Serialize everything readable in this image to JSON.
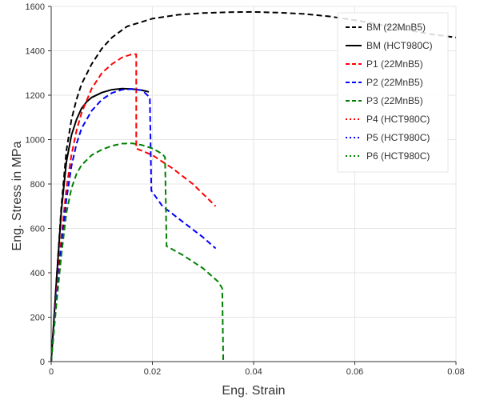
{
  "chart_data": {
    "type": "line",
    "title": "",
    "xlabel": "Eng. Strain",
    "ylabel": "Eng. Stress in MPa",
    "xlim": [
      0,
      0.08
    ],
    "ylim": [
      0,
      1600
    ],
    "xticks": [
      0,
      0.02,
      0.04,
      0.06,
      0.08
    ],
    "xtick_labels": [
      "0",
      "0.02",
      "0.04",
      "0.06",
      "0.08"
    ],
    "yticks": [
      0,
      200,
      400,
      600,
      800,
      1000,
      1200,
      1400,
      1600
    ],
    "ytick_labels": [
      "0",
      "200",
      "400",
      "600",
      "800",
      "1000",
      "1200",
      "1400",
      "1600"
    ],
    "grid": true,
    "legend_position": "top-right",
    "series": [
      {
        "name": "BM  (22MnB5)",
        "color": "#000000",
        "style": "dashed",
        "points": [
          [
            0,
            0
          ],
          [
            0.001,
            350
          ],
          [
            0.002,
            700
          ],
          [
            0.003,
            950
          ],
          [
            0.004,
            1090
          ],
          [
            0.005,
            1180
          ],
          [
            0.006,
            1250
          ],
          [
            0.008,
            1340
          ],
          [
            0.01,
            1410
          ],
          [
            0.012,
            1460
          ],
          [
            0.015,
            1510
          ],
          [
            0.02,
            1545
          ],
          [
            0.025,
            1562
          ],
          [
            0.03,
            1570
          ],
          [
            0.035,
            1574
          ],
          [
            0.04,
            1575
          ],
          [
            0.045,
            1572
          ],
          [
            0.05,
            1566
          ],
          [
            0.055,
            1555
          ],
          [
            0.06,
            1538
          ],
          [
            0.065,
            1518
          ],
          [
            0.07,
            1495
          ],
          [
            0.075,
            1475
          ],
          [
            0.08,
            1460
          ]
        ]
      },
      {
        "name": "BM    (HCT980C)",
        "color": "#000000",
        "style": "solid",
        "points": [
          [
            0,
            0
          ],
          [
            0.001,
            350
          ],
          [
            0.002,
            680
          ],
          [
            0.003,
            900
          ],
          [
            0.004,
            1020
          ],
          [
            0.005,
            1090
          ],
          [
            0.006,
            1140
          ],
          [
            0.007,
            1170
          ],
          [
            0.008,
            1190
          ],
          [
            0.01,
            1212
          ],
          [
            0.012,
            1225
          ],
          [
            0.014,
            1230
          ],
          [
            0.016,
            1228
          ],
          [
            0.018,
            1222
          ],
          [
            0.0193,
            1215
          ]
        ]
      },
      {
        "name": "P1 (22MnB5)",
        "color": "#ff0000",
        "style": "dashed",
        "points": [
          [
            0,
            0
          ],
          [
            0.001,
            300
          ],
          [
            0.002,
            560
          ],
          [
            0.003,
            780
          ],
          [
            0.004,
            930
          ],
          [
            0.005,
            1040
          ],
          [
            0.006,
            1120
          ],
          [
            0.008,
            1230
          ],
          [
            0.01,
            1300
          ],
          [
            0.012,
            1340
          ],
          [
            0.014,
            1370
          ],
          [
            0.016,
            1385
          ],
          [
            0.0168,
            1385
          ],
          [
            0.0168,
            960
          ],
          [
            0.02,
            930
          ],
          [
            0.024,
            870
          ],
          [
            0.028,
            800
          ],
          [
            0.0325,
            700
          ]
        ]
      },
      {
        "name": "P2 (22MnB5)",
        "color": "#0000ff",
        "style": "dashed",
        "points": [
          [
            0,
            0
          ],
          [
            0.001,
            280
          ],
          [
            0.002,
            520
          ],
          [
            0.003,
            730
          ],
          [
            0.004,
            880
          ],
          [
            0.005,
            980
          ],
          [
            0.006,
            1050
          ],
          [
            0.008,
            1130
          ],
          [
            0.01,
            1180
          ],
          [
            0.012,
            1210
          ],
          [
            0.014,
            1225
          ],
          [
            0.016,
            1228
          ],
          [
            0.018,
            1222
          ],
          [
            0.0195,
            1190
          ],
          [
            0.0198,
            770
          ],
          [
            0.022,
            700
          ],
          [
            0.026,
            630
          ],
          [
            0.03,
            560
          ],
          [
            0.0325,
            510
          ]
        ]
      },
      {
        "name": "P3 (22MnB5)",
        "color": "#008000",
        "style": "dashed",
        "points": [
          [
            0,
            0
          ],
          [
            0.001,
            250
          ],
          [
            0.002,
            480
          ],
          [
            0.003,
            670
          ],
          [
            0.004,
            780
          ],
          [
            0.005,
            845
          ],
          [
            0.006,
            885
          ],
          [
            0.008,
            930
          ],
          [
            0.01,
            955
          ],
          [
            0.012,
            972
          ],
          [
            0.014,
            982
          ],
          [
            0.016,
            983
          ],
          [
            0.018,
            975
          ],
          [
            0.02,
            960
          ],
          [
            0.022,
            935
          ],
          [
            0.0225,
            920
          ],
          [
            0.0228,
            520
          ],
          [
            0.026,
            480
          ],
          [
            0.03,
            420
          ],
          [
            0.033,
            360
          ],
          [
            0.0338,
            330
          ],
          [
            0.034,
            0
          ]
        ]
      },
      {
        "name": "P4 (HCT980C)",
        "color": "#ff0000",
        "style": "dotted",
        "points": []
      },
      {
        "name": "P5 (HCT980C)",
        "color": "#0000ff",
        "style": "dotted",
        "points": []
      },
      {
        "name": "P6 (HCT980C)",
        "color": "#008000",
        "style": "dotted",
        "points": []
      }
    ]
  }
}
